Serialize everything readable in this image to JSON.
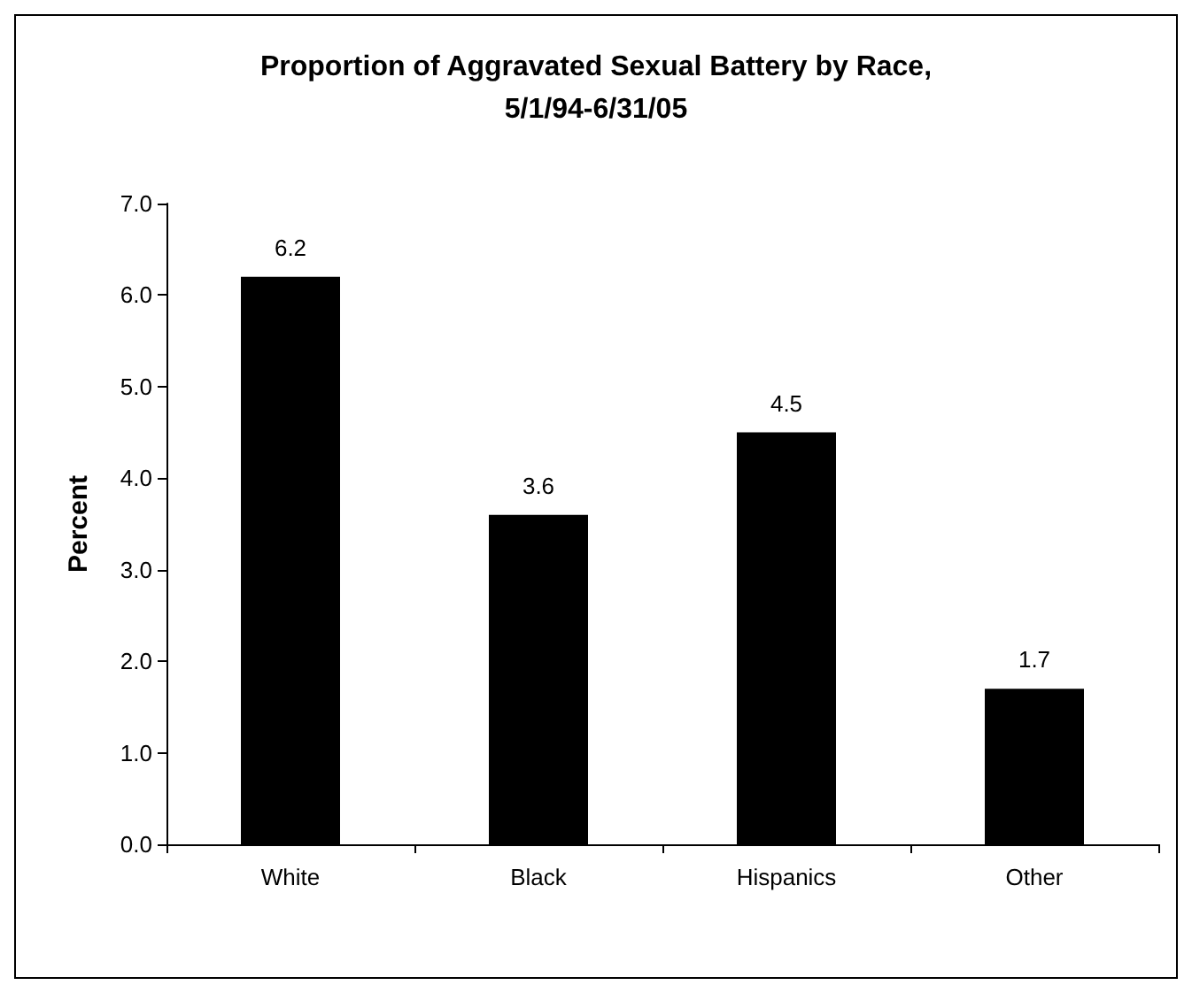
{
  "chart_data": {
    "type": "bar",
    "title": "Proportion of Aggravated Sexual Battery by Race,\n5/1/94-6/31/05",
    "ylabel": "Percent",
    "categories": [
      "White",
      "Black",
      "Hispanics",
      "Other"
    ],
    "values": [
      6.2,
      3.6,
      4.5,
      1.7
    ],
    "color": "#000000",
    "ylim": [
      0,
      7
    ],
    "yticks": [
      {
        "value": 0,
        "label": "0.0"
      },
      {
        "value": 1,
        "label": "1.0"
      },
      {
        "value": 2,
        "label": "2.0"
      },
      {
        "value": 3,
        "label": "3.0"
      },
      {
        "value": 4,
        "label": "4.0"
      },
      {
        "value": 5,
        "label": "5.0"
      },
      {
        "value": 6,
        "label": "6.0"
      },
      {
        "value": 7,
        "label": "7.0"
      }
    ],
    "data_labels": true
  }
}
